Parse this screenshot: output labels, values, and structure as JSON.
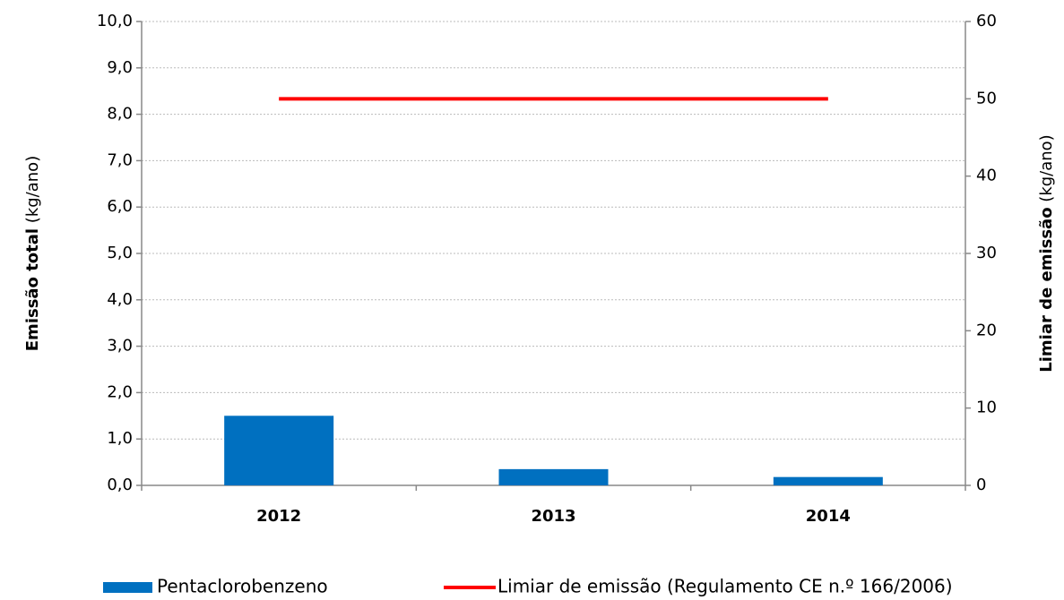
{
  "chart_data": {
    "type": "bar",
    "y_label": "Emissão total",
    "y_label_unit": "(kg/ano)",
    "y2_label": "Limiar de emissão",
    "y2_label_unit": "(kg/ano)",
    "categories": [
      "2012",
      "2013",
      "2014"
    ],
    "series": [
      {
        "name": "Pentaclorobenzeno",
        "type": "bar",
        "color": "#0070c0",
        "values": [
          1.5,
          0.35,
          0.18
        ]
      },
      {
        "name": "Limiar de emissão (Regulamento CE n.º 166/2006)",
        "type": "line",
        "axis": "y2",
        "color": "#ff0000",
        "values": [
          50,
          50,
          50
        ]
      }
    ],
    "ylim": [
      0,
      10
    ],
    "yticks": [
      {
        "value": 0,
        "label": "0,0"
      },
      {
        "value": 1,
        "label": "1,0"
      },
      {
        "value": 2,
        "label": "2,0"
      },
      {
        "value": 3,
        "label": "3,0"
      },
      {
        "value": 4,
        "label": "4,0"
      },
      {
        "value": 5,
        "label": "5,0"
      },
      {
        "value": 6,
        "label": "6,0"
      },
      {
        "value": 7,
        "label": "7,0"
      },
      {
        "value": 8,
        "label": "8,0"
      },
      {
        "value": 9,
        "label": "9,0"
      },
      {
        "value": 10,
        "label": "10,0"
      }
    ],
    "y2lim": [
      0,
      60
    ],
    "y2ticks": [
      0,
      10,
      20,
      30,
      40,
      50,
      60
    ],
    "grid": true,
    "legend": "bottom"
  }
}
